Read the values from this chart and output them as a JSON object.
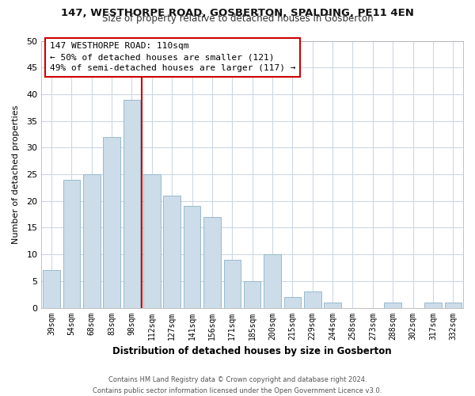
{
  "title": "147, WESTHORPE ROAD, GOSBERTON, SPALDING, PE11 4EN",
  "subtitle": "Size of property relative to detached houses in Gosberton",
  "xlabel": "Distribution of detached houses by size in Gosberton",
  "ylabel": "Number of detached properties",
  "footer_line1": "Contains HM Land Registry data © Crown copyright and database right 2024.",
  "footer_line2": "Contains public sector information licensed under the Open Government Licence v3.0.",
  "bar_labels": [
    "39sqm",
    "54sqm",
    "68sqm",
    "83sqm",
    "98sqm",
    "112sqm",
    "127sqm",
    "141sqm",
    "156sqm",
    "171sqm",
    "185sqm",
    "200sqm",
    "215sqm",
    "229sqm",
    "244sqm",
    "258sqm",
    "273sqm",
    "288sqm",
    "302sqm",
    "317sqm",
    "332sqm"
  ],
  "bar_values": [
    7,
    24,
    25,
    32,
    39,
    25,
    21,
    19,
    17,
    9,
    5,
    10,
    2,
    3,
    1,
    0,
    0,
    1,
    0,
    1,
    1
  ],
  "bar_color": "#ccdce8",
  "bar_edge_color": "#99bbcc",
  "vline_x_index": 4,
  "vline_color": "#cc0000",
  "annotation_title": "147 WESTHORPE ROAD: 110sqm",
  "annotation_line1": "← 50% of detached houses are smaller (121)",
  "annotation_line2": "49% of semi-detached houses are larger (117) →",
  "annotation_box_color": "#ffffff",
  "annotation_box_edge": "#cc0000",
  "ylim": [
    0,
    50
  ],
  "bg_color": "#ffffff",
  "grid_color": "#ccd8e4"
}
